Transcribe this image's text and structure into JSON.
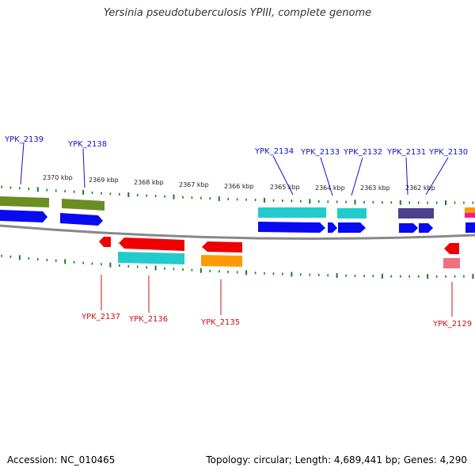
{
  "title": "Yersinia pseudotuberculosis YPIII, complete genome",
  "footer": {
    "accession": "Accession: NC_010465",
    "topology": "Topology: circular; Length: 4,689,441 bp; Genes: 4,290"
  },
  "colors": {
    "top_label": "#1010cc",
    "bottom_label": "#cc1010",
    "tick": "#1e7a1e",
    "backbone": "#888888",
    "olive": "#6b8e23",
    "blue": "#0a0af0",
    "cyan": "#22cccc",
    "slate": "#4b3f8f",
    "red": "#ee0000",
    "orange": "#ff9900",
    "pink": "#f07080",
    "magenta": "#ff1493"
  },
  "scale_labels": [
    "2370 kbp",
    "2369 kbp",
    "2368 kbp",
    "2367 kbp",
    "2366 kbp",
    "2365 kbp",
    "2364 kbp",
    "2363 kbp",
    "2362 kbp"
  ],
  "top_labels": [
    "YPK_2139",
    "YPK_2138",
    "YPK_2134",
    "YPK_2133",
    "YPK_2132",
    "YPK_2131",
    "YPK_2130"
  ],
  "bottom_labels": [
    "YPK_2137",
    "YPK_2136",
    "YPK_2135",
    "YPK_2129"
  ]
}
